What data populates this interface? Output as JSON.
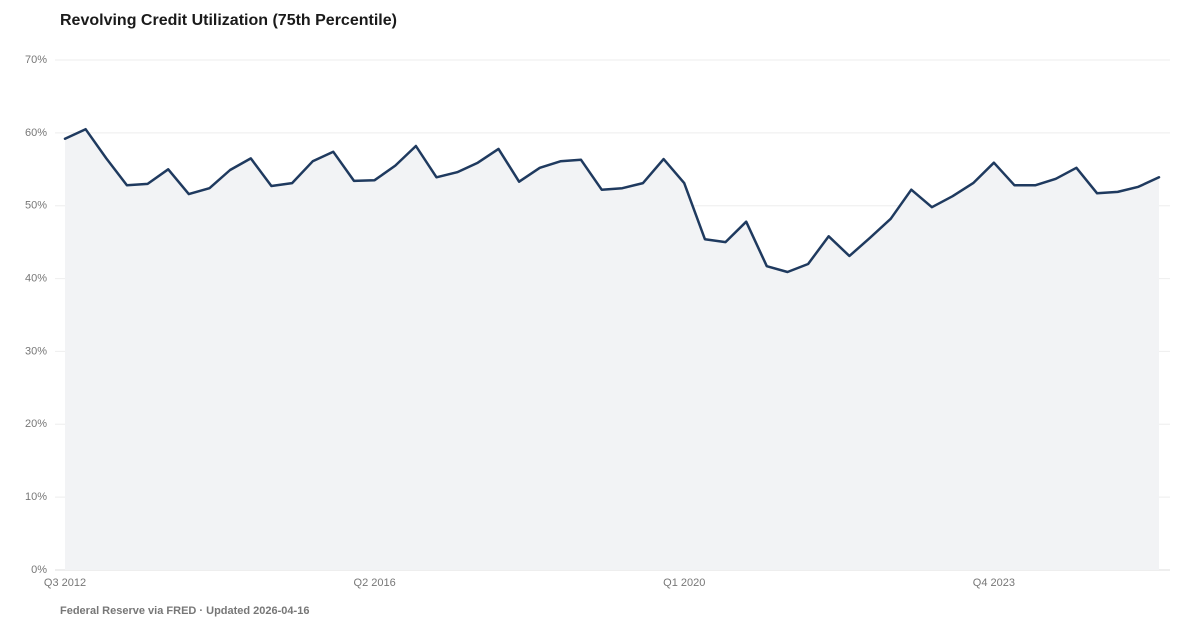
{
  "chart_data": {
    "type": "line",
    "title": "Revolving Credit Utilization (75th Percentile)",
    "source": "Federal Reserve via FRED · Updated 2026-04-16",
    "categories": [
      "Q3 2012",
      null,
      null,
      null,
      null,
      null,
      null,
      null,
      null,
      null,
      null,
      null,
      null,
      null,
      null,
      "Q2 2016",
      null,
      null,
      null,
      null,
      null,
      null,
      null,
      null,
      null,
      null,
      null,
      null,
      null,
      null,
      "Q1 2020",
      null,
      null,
      null,
      null,
      null,
      null,
      null,
      null,
      null,
      null,
      null,
      null,
      null,
      null,
      "Q4 2023",
      null,
      null,
      null,
      null,
      null,
      null,
      null,
      null
    ],
    "series": [
      {
        "color": "#1f3a5f",
        "values": [
          59.2,
          60.5,
          56.5,
          52.8,
          53.0,
          55.0,
          51.6,
          52.4,
          54.9,
          56.5,
          52.7,
          53.1,
          56.1,
          57.4,
          53.4,
          53.5,
          55.5,
          58.2,
          53.9,
          54.6,
          55.9,
          57.8,
          53.3,
          55.2,
          56.1,
          56.3,
          52.2,
          52.4,
          53.1,
          56.4,
          53.1,
          45.4,
          45.0,
          47.8,
          41.7,
          40.9,
          42.0,
          45.8,
          43.1,
          45.6,
          48.2,
          52.2,
          49.8,
          51.3,
          53.1,
          55.9,
          52.8,
          52.8,
          53.7,
          55.2,
          51.7,
          51.9,
          52.6,
          53.9
        ]
      }
    ],
    "ylim": [
      0,
      70
    ],
    "yticks": [
      {
        "value": 0,
        "label": "0%"
      },
      {
        "value": 10,
        "label": "10%"
      },
      {
        "value": 20,
        "label": "20%"
      },
      {
        "value": 30,
        "label": "30%"
      },
      {
        "value": 40,
        "label": "40%"
      },
      {
        "value": 50,
        "label": "50%"
      },
      {
        "value": 60,
        "label": "60%"
      },
      {
        "value": 70,
        "label": "70%"
      }
    ],
    "grid": true,
    "area_fill": "#f2f3f5"
  }
}
